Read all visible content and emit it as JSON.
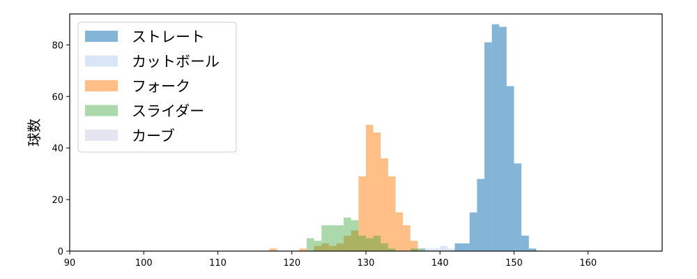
{
  "chart_data": {
    "type": "bar",
    "subtype": "histogram",
    "ylabel": "球数",
    "xlabel": "",
    "xlim": [
      90,
      170
    ],
    "ylim": [
      0,
      92
    ],
    "xticks": [
      90,
      100,
      110,
      120,
      130,
      140,
      150,
      160
    ],
    "yticks": [
      0,
      20,
      40,
      60,
      80
    ],
    "bin_width": 1,
    "legend_position": "top-left",
    "series": [
      {
        "name": "ストレート",
        "color": "#1f77b4",
        "alpha": 0.55,
        "bins": [
          {
            "x": 142,
            "count": 3
          },
          {
            "x": 143,
            "count": 3
          },
          {
            "x": 144,
            "count": 15
          },
          {
            "x": 145,
            "count": 28
          },
          {
            "x": 146,
            "count": 81
          },
          {
            "x": 147,
            "count": 88
          },
          {
            "x": 148,
            "count": 87
          },
          {
            "x": 149,
            "count": 64
          },
          {
            "x": 150,
            "count": 34
          },
          {
            "x": 151,
            "count": 6
          },
          {
            "x": 152,
            "count": 1
          }
        ]
      },
      {
        "name": "カットボール",
        "color": "#aec7e8",
        "alpha": 0.45,
        "bins": [
          {
            "x": 137,
            "count": 1
          },
          {
            "x": 138,
            "count": 1
          },
          {
            "x": 139,
            "count": 1
          },
          {
            "x": 140,
            "count": 2
          },
          {
            "x": 141,
            "count": 1
          }
        ]
      },
      {
        "name": "フォーク",
        "color": "#ff7f0e",
        "alpha": 0.5,
        "bins": [
          {
            "x": 117,
            "count": 1
          },
          {
            "x": 121,
            "count": 1
          },
          {
            "x": 123,
            "count": 2
          },
          {
            "x": 124,
            "count": 3
          },
          {
            "x": 125,
            "count": 2
          },
          {
            "x": 126,
            "count": 3
          },
          {
            "x": 127,
            "count": 6
          },
          {
            "x": 128,
            "count": 8
          },
          {
            "x": 129,
            "count": 29
          },
          {
            "x": 130,
            "count": 49
          },
          {
            "x": 131,
            "count": 46
          },
          {
            "x": 132,
            "count": 36
          },
          {
            "x": 133,
            "count": 29
          },
          {
            "x": 134,
            "count": 15
          },
          {
            "x": 135,
            "count": 10
          },
          {
            "x": 136,
            "count": 4
          }
        ]
      },
      {
        "name": "スライダー",
        "color": "#2ca02c",
        "alpha": 0.4,
        "bins": [
          {
            "x": 122,
            "count": 5
          },
          {
            "x": 123,
            "count": 4
          },
          {
            "x": 124,
            "count": 10
          },
          {
            "x": 125,
            "count": 10
          },
          {
            "x": 126,
            "count": 10
          },
          {
            "x": 127,
            "count": 13
          },
          {
            "x": 128,
            "count": 12
          },
          {
            "x": 129,
            "count": 6
          },
          {
            "x": 130,
            "count": 5
          },
          {
            "x": 131,
            "count": 6
          },
          {
            "x": 132,
            "count": 3
          },
          {
            "x": 133,
            "count": 1
          },
          {
            "x": 136,
            "count": 1
          },
          {
            "x": 137,
            "count": 1
          }
        ]
      },
      {
        "name": "カーブ",
        "color": "#c5c5e2",
        "alpha": 0.45,
        "bins": []
      }
    ]
  }
}
